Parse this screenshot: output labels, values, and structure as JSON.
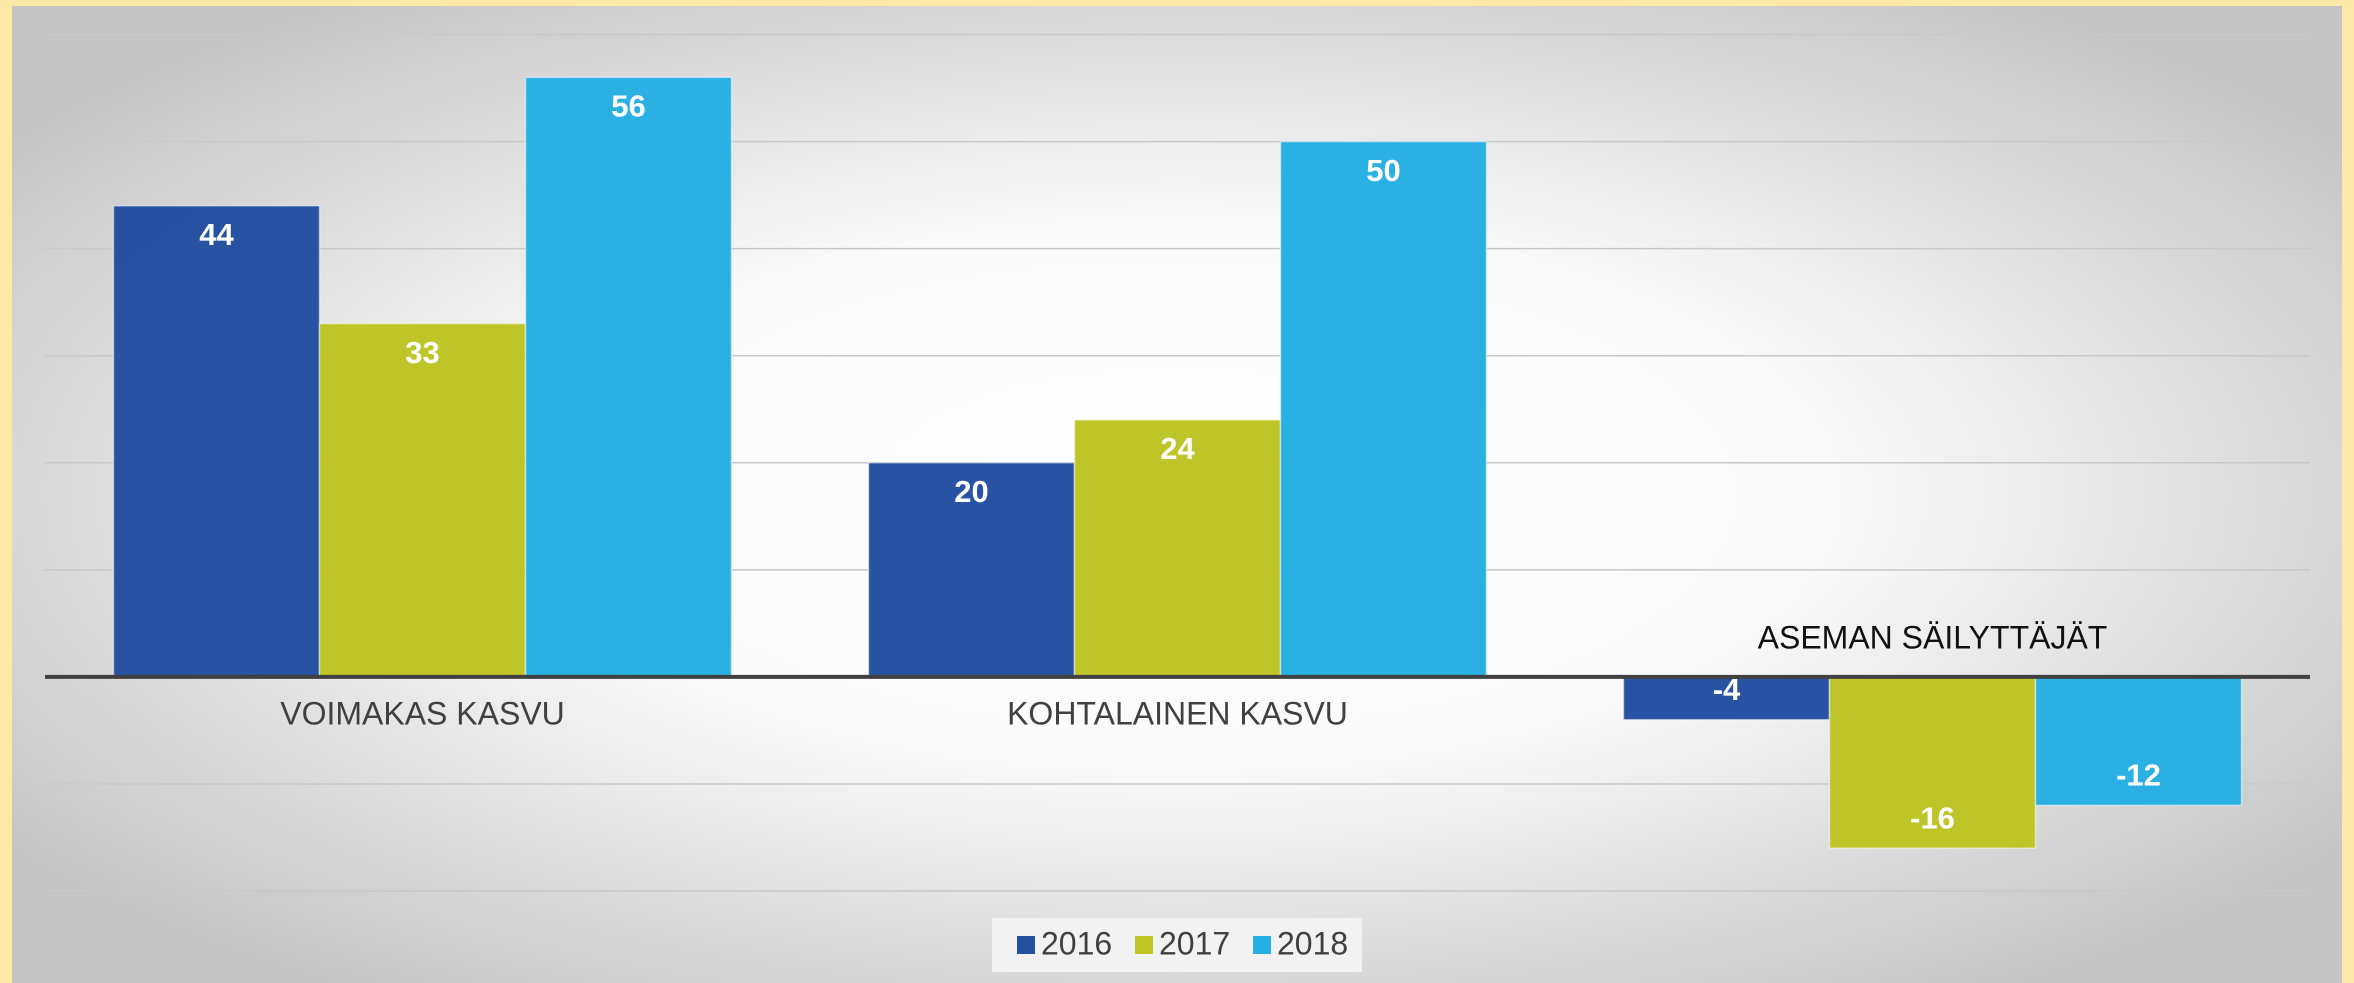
{
  "chart_data": {
    "type": "bar",
    "categories": [
      "VOIMAKAS KASVU",
      "KOHTALAINEN KASVU",
      "ASEMAN SÄILYTTÄJÄT"
    ],
    "series": [
      {
        "name": "2016",
        "color": "#2450a0",
        "values": [
          44,
          20,
          -4
        ]
      },
      {
        "name": "2017",
        "color": "#bdc424",
        "values": [
          33,
          24,
          -16
        ]
      },
      {
        "name": "2018",
        "color": "#27aee3",
        "values": [
          56,
          50,
          -12
        ]
      }
    ],
    "ylim": [
      -20,
      60
    ],
    "yticks": [
      -20,
      -10,
      0,
      10,
      20,
      30,
      40,
      50,
      60
    ],
    "grid": true,
    "legend": "bottom"
  }
}
